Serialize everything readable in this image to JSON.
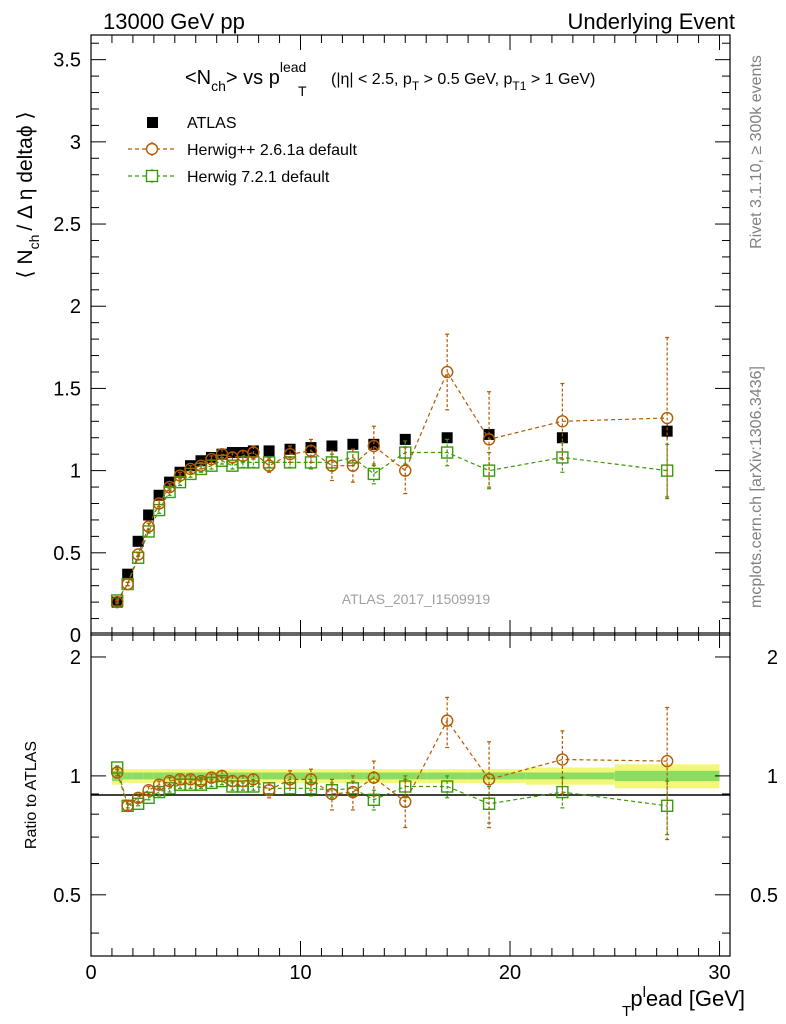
{
  "header": {
    "left": "13000 GeV pp",
    "right": "Underlying Event"
  },
  "side_labels": {
    "rivet": "Rivet 3.1.10, ≥ 300k events",
    "mcplots": "mcplots.cern.ch [arXiv:1306.3436]"
  },
  "analysis_id": "ATLAS_2017_I1509919",
  "colors": {
    "atlas": "#000000",
    "herwigpp": "#b35900",
    "herwig7": "#3a9a0a",
    "band_inner": "#8ddc62",
    "band_outer": "#f2f77a"
  },
  "chart_data": [
    {
      "type": "scatter",
      "panel": "main",
      "title": {
        "main": "<N",
        "main_sub": "ch",
        "mid": "> vs p",
        "sup": "lead",
        "sub": "T",
        "cuts_a": "(|η| < 2.5, p",
        "cuts_a_sub": "T",
        "cuts_b": " > 0.5 GeV, p",
        "cuts_b_sub": "T1",
        "cuts_c": " > 1 GeV)"
      },
      "ylabel": {
        "pre": "⟨ N",
        "sub": "ch",
        "post": "/ Δ η deltaϕ ⟩"
      },
      "xlim": [
        0,
        30.5
      ],
      "ylim": [
        0,
        3.65
      ],
      "yticks": [
        0,
        0.5,
        1,
        1.5,
        2,
        2.5,
        3,
        3.5
      ],
      "ytick_labels": [
        "0",
        "0.5",
        "1",
        "1.5",
        "2",
        "2.5",
        "3",
        "3.5"
      ],
      "legend": {
        "placement": "top-left",
        "entries": [
          "ATLAS",
          "Herwig++ 2.6.1a default",
          "Herwig 7.2.1 default"
        ]
      },
      "x": [
        1.25,
        1.75,
        2.25,
        2.75,
        3.25,
        3.75,
        4.25,
        4.75,
        5.25,
        5.75,
        6.25,
        6.75,
        7.25,
        7.75,
        8.5,
        9.5,
        10.5,
        11.5,
        12.5,
        13.5,
        15.0,
        17.0,
        19.0,
        22.5,
        27.5
      ],
      "series": [
        {
          "name": "ATLAS",
          "marker": "filled-square",
          "values": [
            0.2,
            0.37,
            0.57,
            0.73,
            0.85,
            0.93,
            0.99,
            1.03,
            1.06,
            1.08,
            1.1,
            1.11,
            1.11,
            1.12,
            1.12,
            1.13,
            1.14,
            1.15,
            1.16,
            1.16,
            1.19,
            1.2,
            1.22,
            1.2,
            1.24
          ],
          "errors": [
            0.01,
            0.01,
            0.01,
            0.01,
            0.01,
            0.01,
            0.01,
            0.01,
            0.01,
            0.01,
            0.01,
            0.01,
            0.01,
            0.01,
            0.01,
            0.01,
            0.01,
            0.01,
            0.01,
            0.01,
            0.01,
            0.01,
            0.02,
            0.02,
            0.04
          ]
        },
        {
          "name": "Herwig++ 2.6.1a default",
          "marker": "open-circle",
          "values": [
            0.2,
            0.31,
            0.49,
            0.66,
            0.8,
            0.9,
            0.97,
            1.01,
            1.03,
            1.07,
            1.1,
            1.08,
            1.09,
            1.11,
            1.03,
            1.1,
            1.12,
            1.03,
            1.03,
            1.15,
            1.0,
            1.6,
            1.19,
            1.3,
            1.32
          ],
          "errors": [
            0.01,
            0.01,
            0.01,
            0.02,
            0.02,
            0.02,
            0.02,
            0.02,
            0.02,
            0.02,
            0.03,
            0.03,
            0.03,
            0.04,
            0.04,
            0.05,
            0.07,
            0.09,
            0.1,
            0.12,
            0.14,
            0.23,
            0.29,
            0.23,
            0.49
          ]
        },
        {
          "name": "Herwig 7.2.1 default",
          "marker": "open-square",
          "values": [
            0.21,
            0.31,
            0.47,
            0.63,
            0.76,
            0.87,
            0.93,
            0.98,
            1.01,
            1.03,
            1.06,
            1.03,
            1.05,
            1.05,
            1.05,
            1.05,
            1.05,
            1.05,
            1.08,
            0.98,
            1.11,
            1.11,
            1.0,
            1.08,
            1.0
          ],
          "errors": [
            0.01,
            0.01,
            0.01,
            0.01,
            0.02,
            0.02,
            0.02,
            0.02,
            0.02,
            0.02,
            0.02,
            0.02,
            0.03,
            0.03,
            0.03,
            0.03,
            0.04,
            0.05,
            0.05,
            0.06,
            0.07,
            0.08,
            0.11,
            0.09,
            0.16
          ]
        }
      ]
    },
    {
      "type": "scatter",
      "panel": "ratio",
      "ylabel": "Ratio to ATLAS",
      "xlabel": {
        "pre": "p",
        "sup": "l",
        "sub": "T",
        "post": "ead [GeV]"
      },
      "xlim": [
        0,
        30.5
      ],
      "ylim": [
        0.35,
        2.3
      ],
      "xticks": [
        0,
        10,
        20,
        30
      ],
      "xtick_labels": [
        "0",
        "10",
        "20",
        "30"
      ],
      "yticks": [
        0.5,
        1,
        2
      ],
      "ytick_labels": [
        "0.5",
        "1",
        "2"
      ],
      "x": [
        1.25,
        1.75,
        2.25,
        2.75,
        3.25,
        3.75,
        4.25,
        4.75,
        5.25,
        5.75,
        6.25,
        6.75,
        7.25,
        7.75,
        8.5,
        9.5,
        10.5,
        11.5,
        12.5,
        13.5,
        15.0,
        17.0,
        19.0,
        22.5,
        27.5
      ],
      "band": {
        "inner": [
          0.03,
          0.02,
          0.02,
          0.02,
          0.02,
          0.02,
          0.02,
          0.02,
          0.02,
          0.02,
          0.02,
          0.02,
          0.02,
          0.02,
          0.02,
          0.02,
          0.02,
          0.02,
          0.02,
          0.02,
          0.02,
          0.02,
          0.02,
          0.02,
          0.03
        ],
        "outer": [
          0.05,
          0.04,
          0.04,
          0.04,
          0.04,
          0.04,
          0.04,
          0.04,
          0.04,
          0.04,
          0.04,
          0.04,
          0.04,
          0.04,
          0.04,
          0.04,
          0.04,
          0.04,
          0.04,
          0.04,
          0.04,
          0.04,
          0.04,
          0.05,
          0.07
        ]
      },
      "series": [
        {
          "name": "Herwig++ 2.6.1a default",
          "marker": "open-circle",
          "values": [
            1.02,
            0.84,
            0.88,
            0.92,
            0.95,
            0.97,
            0.98,
            0.98,
            0.97,
            0.99,
            1.0,
            0.97,
            0.97,
            0.98,
            0.92,
            0.98,
            0.98,
            0.9,
            0.91,
            0.99,
            0.86,
            1.38,
            0.98,
            1.1,
            1.09
          ],
          "errors": [
            0.02,
            0.02,
            0.02,
            0.02,
            0.02,
            0.02,
            0.02,
            0.02,
            0.02,
            0.02,
            0.03,
            0.03,
            0.03,
            0.03,
            0.04,
            0.05,
            0.06,
            0.08,
            0.09,
            0.1,
            0.12,
            0.2,
            0.24,
            0.2,
            0.4
          ]
        },
        {
          "name": "Herwig 7.2.1 default",
          "marker": "open-square",
          "values": [
            1.05,
            0.84,
            0.85,
            0.88,
            0.91,
            0.93,
            0.95,
            0.95,
            0.95,
            0.96,
            0.97,
            0.94,
            0.94,
            0.94,
            0.93,
            0.93,
            0.93,
            0.92,
            0.93,
            0.87,
            0.94,
            0.94,
            0.85,
            0.91,
            0.84
          ],
          "errors": [
            0.01,
            0.01,
            0.01,
            0.01,
            0.02,
            0.02,
            0.02,
            0.02,
            0.02,
            0.02,
            0.02,
            0.02,
            0.02,
            0.02,
            0.03,
            0.03,
            0.04,
            0.04,
            0.04,
            0.05,
            0.06,
            0.06,
            0.09,
            0.08,
            0.13
          ]
        }
      ]
    }
  ]
}
